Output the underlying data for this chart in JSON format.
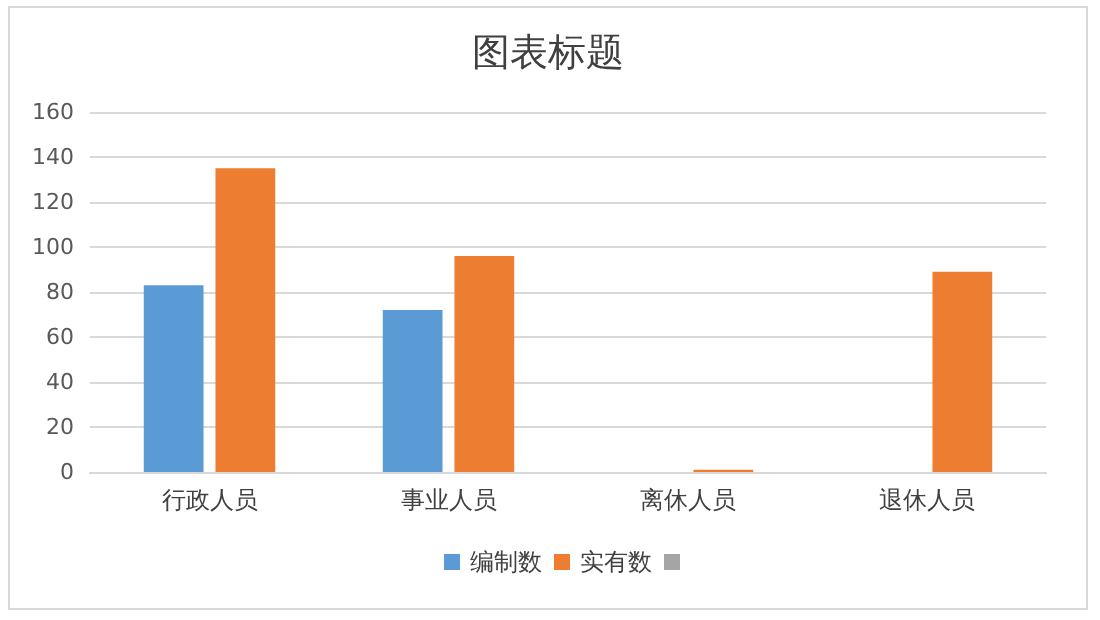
{
  "chart_data": {
    "type": "bar",
    "title": "图表标题",
    "categories": [
      "行政人员",
      "事业人员",
      "离休人员",
      "退休人员"
    ],
    "series": [
      {
        "name": "编制数",
        "color": "#5b9bd5",
        "values": [
          83,
          72,
          null,
          null
        ]
      },
      {
        "name": "实有数",
        "color": "#ed7d31",
        "values": [
          135,
          96,
          1,
          89
        ]
      }
    ],
    "ylim": [
      0,
      160
    ],
    "yticks": [
      0,
      20,
      40,
      60,
      80,
      100,
      120,
      140,
      160
    ],
    "grid": "y",
    "legend": "bottom"
  }
}
